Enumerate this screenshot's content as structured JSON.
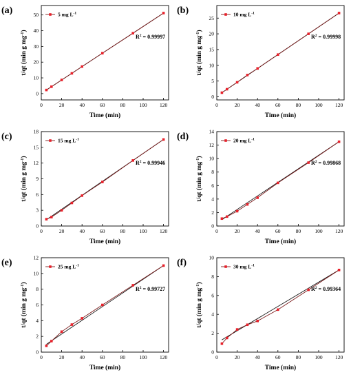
{
  "chart_data": [
    {
      "type": "scatter",
      "panel_label": "(a)",
      "legend": "5 mg L",
      "legend_sup": "-1",
      "r2_label": "R",
      "r2_sup": "2",
      "r2_text": " = 0.99997",
      "xlabel": "Time (min)",
      "ylabel_main": "t/qt (min g mg",
      "ylabel_sup": "-1",
      "ylabel_close": ")",
      "xlim": [
        0,
        125
      ],
      "ylim": [
        -4,
        56
      ],
      "xticks": [
        0,
        20,
        40,
        60,
        80,
        100,
        120
      ],
      "yticks": [
        0,
        10,
        20,
        30,
        40,
        50
      ],
      "x": [
        5,
        10,
        20,
        30,
        40,
        60,
        90,
        120
      ],
      "y": [
        2.3,
        4.4,
        8.7,
        12.9,
        17.2,
        25.7,
        38.4,
        51.2
      ],
      "fit_line": [
        [
          5,
          2.3
        ],
        [
          120,
          51.2
        ]
      ]
    },
    {
      "type": "scatter",
      "panel_label": "(b)",
      "legend": "10 mg L",
      "legend_sup": "-1",
      "r2_label": "R",
      "r2_sup": "2",
      "r2_text": " = 0.99998",
      "xlabel": "Time (min)",
      "ylabel_main": "t/qt (min g mg",
      "ylabel_sup": "-1",
      "ylabel_close": ")",
      "xlim": [
        0,
        125
      ],
      "ylim": [
        -1,
        29
      ],
      "xticks": [
        0,
        20,
        40,
        60,
        80,
        100,
        120
      ],
      "yticks": [
        0,
        5,
        10,
        15,
        20,
        25
      ],
      "x": [
        5,
        10,
        20,
        30,
        40,
        60,
        90,
        120
      ],
      "y": [
        1.3,
        2.4,
        4.6,
        6.9,
        9.0,
        13.4,
        20.0,
        26.6
      ],
      "fit_line": [
        [
          5,
          1.3
        ],
        [
          120,
          26.6
        ]
      ]
    },
    {
      "type": "scatter",
      "panel_label": "(c)",
      "legend": "15 mg L",
      "legend_sup": "-1",
      "r2_label": "R",
      "r2_sup": "2",
      "r2_text": " = 0.99946",
      "xlabel": "Time (min)",
      "ylabel_main": "t/qt (min g mg",
      "ylabel_sup": "-1",
      "ylabel_close": ")",
      "xlim": [
        0,
        125
      ],
      "ylim": [
        0,
        18
      ],
      "xticks": [
        0,
        20,
        40,
        60,
        80,
        100,
        120
      ],
      "yticks": [
        0,
        3,
        6,
        9,
        12,
        15,
        18
      ],
      "x": [
        5,
        10,
        20,
        30,
        40,
        60,
        90,
        120
      ],
      "y": [
        1.3,
        1.7,
        3.0,
        4.4,
        5.8,
        8.4,
        12.5,
        16.5
      ],
      "fit_line": [
        [
          5,
          1.2
        ],
        [
          120,
          16.5
        ]
      ]
    },
    {
      "type": "scatter",
      "panel_label": "(d)",
      "legend": "20 mg L",
      "legend_sup": "-1",
      "r2_label": "R",
      "r2_sup": "2",
      "r2_text": " = 0.99868",
      "xlabel": "Time (min)",
      "ylabel_main": "t/qt (min g mg",
      "ylabel_sup": "-1",
      "ylabel_close": ")",
      "xlim": [
        0,
        125
      ],
      "ylim": [
        0,
        14
      ],
      "xticks": [
        0,
        20,
        40,
        60,
        80,
        100,
        120
      ],
      "yticks": [
        0,
        2,
        4,
        6,
        8,
        10,
        12,
        14
      ],
      "x": [
        5,
        10,
        20,
        30,
        40,
        60,
        90,
        120
      ],
      "y": [
        1.1,
        1.4,
        2.2,
        3.2,
        4.2,
        6.4,
        9.4,
        12.5
      ],
      "fit_line": [
        [
          5,
          0.95
        ],
        [
          120,
          12.5
        ]
      ]
    },
    {
      "type": "scatter",
      "panel_label": "(e)",
      "legend": "25 mg L",
      "legend_sup": "-1",
      "r2_label": "R",
      "r2_sup": "2",
      "r2_text": " = 0.99727",
      "xlabel": "Time (min)",
      "ylabel_main": "t/qt (min g mg",
      "ylabel_sup": "-1",
      "ylabel_close": ")",
      "xlim": [
        0,
        125
      ],
      "ylim": [
        0,
        12
      ],
      "xticks": [
        0,
        20,
        40,
        60,
        80,
        100,
        120
      ],
      "yticks": [
        0,
        2,
        4,
        6,
        8,
        10,
        12
      ],
      "x": [
        5,
        10,
        20,
        30,
        40,
        60,
        90,
        120
      ],
      "y": [
        0.8,
        1.4,
        2.6,
        3.5,
        4.3,
        6.0,
        8.5,
        11.0
      ],
      "fit_line": [
        [
          5,
          1.0
        ],
        [
          120,
          11.0
        ]
      ]
    },
    {
      "type": "scatter",
      "panel_label": "(f)",
      "legend": "30 mg L",
      "legend_sup": "-1",
      "r2_label": "R",
      "r2_sup": "2",
      "r2_text": " = 0.99364",
      "xlabel": "Time (min)",
      "ylabel_main": "t/qt (min g mg",
      "ylabel_sup": "-1",
      "ylabel_close": ")",
      "xlim": [
        0,
        125
      ],
      "ylim": [
        0,
        10
      ],
      "xticks": [
        0,
        20,
        40,
        60,
        80,
        100,
        120
      ],
      "yticks": [
        0,
        2,
        4,
        6,
        8,
        10
      ],
      "x": [
        5,
        10,
        20,
        30,
        40,
        60,
        90,
        120
      ],
      "y": [
        0.9,
        1.5,
        2.4,
        2.9,
        3.3,
        4.5,
        6.6,
        8.7
      ],
      "fit_line": [
        [
          5,
          1.3
        ],
        [
          120,
          8.7
        ]
      ]
    }
  ],
  "colors": {
    "marker": "#e8202a",
    "series_line": "#7a1b1b",
    "fit_line": "#1a1a1a",
    "axis": "#000000"
  }
}
